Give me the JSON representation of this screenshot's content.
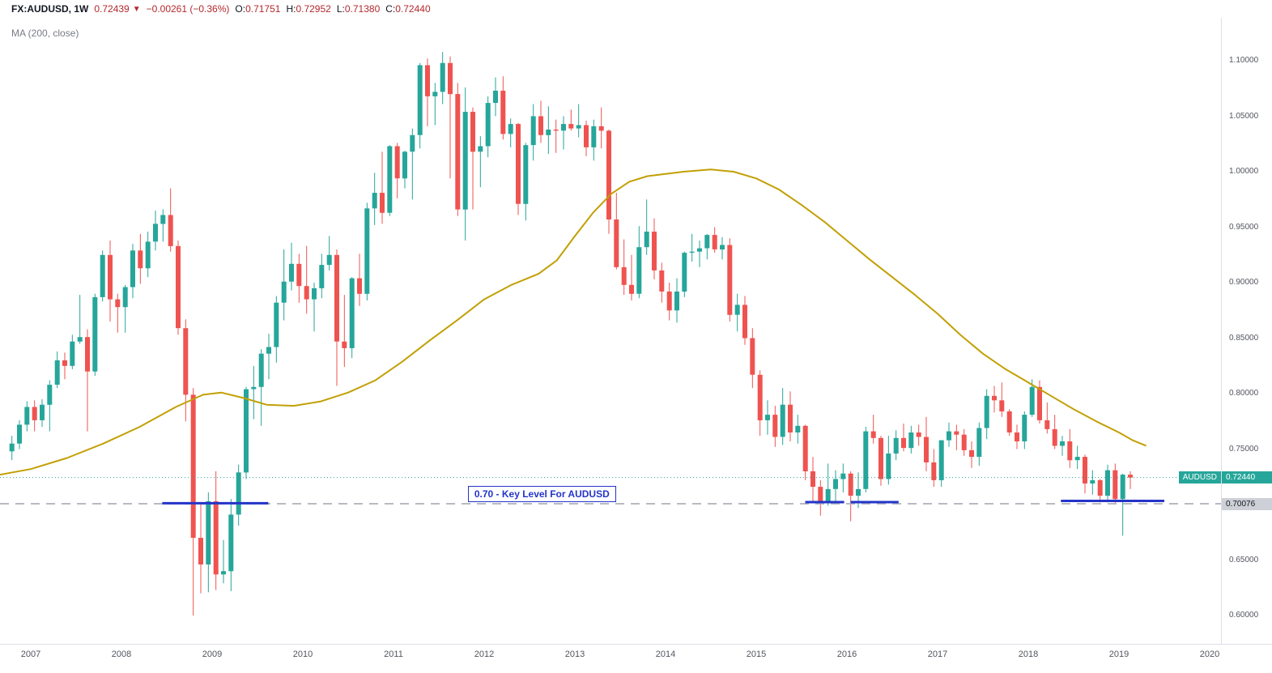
{
  "header": {
    "symbol": "FX:AUDUSD, 1W",
    "last": "0.72439",
    "direction": "▼",
    "change": "−0.00261 (−0.36%)",
    "ohlc": [
      {
        "label": "O:",
        "value": "0.71751"
      },
      {
        "label": "H:",
        "value": "0.72952"
      },
      {
        "label": "L:",
        "value": "0.71380"
      },
      {
        "label": "C:",
        "value": "0.72440"
      }
    ]
  },
  "indicator_label": "MA (200, close)",
  "price_axis": {
    "symbol_tag": {
      "label": "AUDUSD",
      "value": "0.72440"
    },
    "level_tag": {
      "value": "0.70076"
    }
  },
  "colors": {
    "up": "#26a69a",
    "down": "#ef5350",
    "ma": "#c2a004",
    "key_level": "#2434c8",
    "dashed_level": "#b7bac3",
    "current_price": "#26a69a",
    "tag_symbol_bg": "#26a69a",
    "tag_level_bg": "#cdd0d6",
    "header_down": "#b3282d"
  },
  "chart_data": {
    "type": "candlestick",
    "title": "FX:AUDUSD, 1W",
    "symbol": "AUDUSD",
    "timeframe": "1W",
    "x_axis": {
      "years": [
        2007,
        2008,
        2009,
        2010,
        2011,
        2012,
        2013,
        2014,
        2015,
        2016,
        2017,
        2018,
        2019,
        2020
      ],
      "range_visible": [
        2006.66,
        2020.13
      ]
    },
    "y_axis": {
      "tick_values": [
        0.6,
        0.65,
        0.7,
        0.75,
        0.8,
        0.85,
        0.9,
        0.95,
        1.0,
        1.05,
        1.1
      ],
      "format": "0.00000",
      "range_visible": [
        0.5745,
        1.1388
      ]
    },
    "grid": false,
    "legend_position": "top-left",
    "ohlc_fields": [
      "month",
      "open",
      "high",
      "low",
      "close"
    ],
    "candles": [
      [
        "2006-10",
        0.748,
        0.762,
        0.74,
        0.755
      ],
      [
        "2006-11",
        0.755,
        0.776,
        0.75,
        0.772
      ],
      [
        "2006-12",
        0.772,
        0.793,
        0.766,
        0.788
      ],
      [
        "2007-01",
        0.788,
        0.794,
        0.766,
        0.776
      ],
      [
        "2007-02",
        0.776,
        0.795,
        0.77,
        0.79
      ],
      [
        "2007-03",
        0.79,
        0.812,
        0.766,
        0.808
      ],
      [
        "2007-04",
        0.808,
        0.838,
        0.805,
        0.83
      ],
      [
        "2007-05",
        0.83,
        0.837,
        0.813,
        0.825
      ],
      [
        "2007-06",
        0.825,
        0.853,
        0.822,
        0.847
      ],
      [
        "2007-07",
        0.847,
        0.889,
        0.845,
        0.851
      ],
      [
        "2007-08",
        0.851,
        0.858,
        0.766,
        0.82
      ],
      [
        "2007-09",
        0.82,
        0.89,
        0.816,
        0.887
      ],
      [
        "2007-10",
        0.887,
        0.929,
        0.883,
        0.925
      ],
      [
        "2007-11",
        0.925,
        0.938,
        0.865,
        0.885
      ],
      [
        "2007-12",
        0.885,
        0.89,
        0.855,
        0.878
      ],
      [
        "2008-01",
        0.878,
        0.898,
        0.855,
        0.896
      ],
      [
        "2008-02",
        0.896,
        0.935,
        0.886,
        0.929
      ],
      [
        "2008-03",
        0.929,
        0.944,
        0.899,
        0.913
      ],
      [
        "2008-04",
        0.913,
        0.946,
        0.905,
        0.937
      ],
      [
        "2008-05",
        0.937,
        0.965,
        0.929,
        0.953
      ],
      [
        "2008-06",
        0.953,
        0.966,
        0.937,
        0.961
      ],
      [
        "2008-07",
        0.961,
        0.985,
        0.928,
        0.933
      ],
      [
        "2008-08",
        0.933,
        0.938,
        0.853,
        0.859
      ],
      [
        "2008-09",
        0.859,
        0.867,
        0.775,
        0.799
      ],
      [
        "2008-10",
        0.799,
        0.805,
        0.6,
        0.67
      ],
      [
        "2008-11",
        0.67,
        0.7,
        0.62,
        0.646
      ],
      [
        "2008-12",
        0.646,
        0.711,
        0.621,
        0.703
      ],
      [
        "2009-01",
        0.703,
        0.73,
        0.623,
        0.637
      ],
      [
        "2009-02",
        0.637,
        0.668,
        0.629,
        0.64
      ],
      [
        "2009-03",
        0.64,
        0.705,
        0.622,
        0.691
      ],
      [
        "2009-04",
        0.691,
        0.736,
        0.681,
        0.729
      ],
      [
        "2009-05",
        0.729,
        0.806,
        0.723,
        0.804
      ],
      [
        "2009-06",
        0.804,
        0.825,
        0.777,
        0.806
      ],
      [
        "2009-07",
        0.806,
        0.84,
        0.771,
        0.836
      ],
      [
        "2009-08",
        0.836,
        0.854,
        0.813,
        0.842
      ],
      [
        "2009-09",
        0.842,
        0.888,
        0.828,
        0.882
      ],
      [
        "2009-10",
        0.882,
        0.93,
        0.866,
        0.901
      ],
      [
        "2009-11",
        0.901,
        0.936,
        0.893,
        0.917
      ],
      [
        "2009-12",
        0.917,
        0.926,
        0.882,
        0.897
      ],
      [
        "2010-01",
        0.897,
        0.933,
        0.872,
        0.885
      ],
      [
        "2010-02",
        0.885,
        0.9,
        0.856,
        0.895
      ],
      [
        "2010-03",
        0.895,
        0.926,
        0.886,
        0.916
      ],
      [
        "2010-04",
        0.916,
        0.942,
        0.911,
        0.925
      ],
      [
        "2010-05",
        0.925,
        0.93,
        0.807,
        0.847
      ],
      [
        "2010-06",
        0.847,
        0.889,
        0.824,
        0.841
      ],
      [
        "2010-07",
        0.841,
        0.905,
        0.832,
        0.904
      ],
      [
        "2010-08",
        0.904,
        0.926,
        0.879,
        0.89
      ],
      [
        "2010-09",
        0.89,
        0.972,
        0.884,
        0.967
      ],
      [
        "2010-10",
        0.967,
        0.999,
        0.952,
        0.981
      ],
      [
        "2010-11",
        0.981,
        1.018,
        0.953,
        0.963
      ],
      [
        "2010-12",
        0.963,
        1.024,
        0.96,
        1.023
      ],
      [
        "2011-01",
        1.023,
        1.026,
        0.976,
        0.994
      ],
      [
        "2011-02",
        0.994,
        1.019,
        0.985,
        1.018
      ],
      [
        "2011-03",
        1.018,
        1.039,
        0.975,
        1.033
      ],
      [
        "2011-04",
        1.033,
        1.098,
        1.021,
        1.096
      ],
      [
        "2011-05",
        1.096,
        1.102,
        1.041,
        1.068
      ],
      [
        "2011-06",
        1.068,
        1.08,
        1.042,
        1.072
      ],
      [
        "2011-07",
        1.072,
        1.108,
        1.061,
        1.098
      ],
      [
        "2011-08",
        1.098,
        1.104,
        0.994,
        1.07
      ],
      [
        "2011-09",
        1.07,
        1.08,
        0.96,
        0.966
      ],
      [
        "2011-10",
        0.966,
        1.076,
        0.938,
        1.054
      ],
      [
        "2011-11",
        1.054,
        1.058,
        0.966,
        1.018
      ],
      [
        "2011-12",
        1.018,
        1.032,
        0.986,
        1.023
      ],
      [
        "2012-01",
        1.023,
        1.068,
        1.013,
        1.062
      ],
      [
        "2012-02",
        1.062,
        1.085,
        1.05,
        1.073
      ],
      [
        "2012-03",
        1.073,
        1.086,
        1.029,
        1.034
      ],
      [
        "2012-04",
        1.034,
        1.048,
        1.022,
        1.043
      ],
      [
        "2012-05",
        1.043,
        1.044,
        0.961,
        0.971
      ],
      [
        "2012-06",
        0.971,
        1.026,
        0.956,
        1.024
      ],
      [
        "2012-07",
        1.024,
        1.061,
        1.01,
        1.05
      ],
      [
        "2012-08",
        1.05,
        1.064,
        1.026,
        1.033
      ],
      [
        "2012-09",
        1.033,
        1.059,
        1.016,
        1.038
      ],
      [
        "2012-10",
        1.038,
        1.047,
        1.017,
        1.037
      ],
      [
        "2012-11",
        1.037,
        1.05,
        1.02,
        1.043
      ],
      [
        "2012-12",
        1.043,
        1.056,
        1.037,
        1.039
      ],
      [
        "2013-01",
        1.039,
        1.061,
        1.031,
        1.042
      ],
      [
        "2013-02",
        1.042,
        1.046,
        1.014,
        1.022
      ],
      [
        "2013-03",
        1.022,
        1.047,
        1.01,
        1.041
      ],
      [
        "2013-04",
        1.041,
        1.058,
        1.021,
        1.037
      ],
      [
        "2013-05",
        1.037,
        1.038,
        0.944,
        0.957
      ],
      [
        "2013-06",
        0.957,
        0.981,
        0.912,
        0.914
      ],
      [
        "2013-07",
        0.914,
        0.939,
        0.889,
        0.898
      ],
      [
        "2013-08",
        0.898,
        0.925,
        0.884,
        0.89
      ],
      [
        "2013-09",
        0.89,
        0.951,
        0.886,
        0.932
      ],
      [
        "2013-10",
        0.932,
        0.975,
        0.925,
        0.946
      ],
      [
        "2013-11",
        0.946,
        0.958,
        0.903,
        0.911
      ],
      [
        "2013-12",
        0.911,
        0.918,
        0.882,
        0.892
      ],
      [
        "2014-01",
        0.892,
        0.9,
        0.866,
        0.875
      ],
      [
        "2014-02",
        0.875,
        0.904,
        0.864,
        0.892
      ],
      [
        "2014-03",
        0.892,
        0.928,
        0.887,
        0.927
      ],
      [
        "2014-04",
        0.927,
        0.944,
        0.919,
        0.928
      ],
      [
        "2014-05",
        0.928,
        0.938,
        0.914,
        0.931
      ],
      [
        "2014-06",
        0.931,
        0.944,
        0.921,
        0.943
      ],
      [
        "2014-07",
        0.943,
        0.95,
        0.927,
        0.93
      ],
      [
        "2014-08",
        0.93,
        0.941,
        0.921,
        0.934
      ],
      [
        "2014-09",
        0.934,
        0.94,
        0.865,
        0.871
      ],
      [
        "2014-10",
        0.871,
        0.89,
        0.856,
        0.88
      ],
      [
        "2014-11",
        0.88,
        0.888,
        0.844,
        0.85
      ],
      [
        "2014-12",
        0.85,
        0.859,
        0.805,
        0.817
      ],
      [
        "2015-01",
        0.817,
        0.821,
        0.762,
        0.776
      ],
      [
        "2015-02",
        0.776,
        0.794,
        0.763,
        0.781
      ],
      [
        "2015-03",
        0.781,
        0.789,
        0.752,
        0.761
      ],
      [
        "2015-04",
        0.761,
        0.805,
        0.754,
        0.79
      ],
      [
        "2015-05",
        0.79,
        0.802,
        0.757,
        0.765
      ],
      [
        "2015-06",
        0.765,
        0.781,
        0.755,
        0.771
      ],
      [
        "2015-07",
        0.771,
        0.772,
        0.722,
        0.73
      ],
      [
        "2015-08",
        0.73,
        0.743,
        0.702,
        0.716
      ],
      [
        "2015-09",
        0.716,
        0.722,
        0.69,
        0.702
      ],
      [
        "2015-10",
        0.702,
        0.737,
        0.699,
        0.714
      ],
      [
        "2015-11",
        0.714,
        0.731,
        0.7,
        0.723
      ],
      [
        "2015-12",
        0.723,
        0.737,
        0.711,
        0.728
      ],
      [
        "2016-01",
        0.728,
        0.73,
        0.685,
        0.708
      ],
      [
        "2016-02",
        0.708,
        0.729,
        0.697,
        0.714
      ],
      [
        "2016-03",
        0.714,
        0.77,
        0.711,
        0.766
      ],
      [
        "2016-04",
        0.766,
        0.781,
        0.755,
        0.76
      ],
      [
        "2016-05",
        0.76,
        0.762,
        0.717,
        0.723
      ],
      [
        "2016-06",
        0.723,
        0.762,
        0.718,
        0.746
      ],
      [
        "2016-07",
        0.746,
        0.767,
        0.74,
        0.76
      ],
      [
        "2016-08",
        0.76,
        0.773,
        0.748,
        0.751
      ],
      [
        "2016-09",
        0.751,
        0.771,
        0.746,
        0.765
      ],
      [
        "2016-10",
        0.765,
        0.772,
        0.753,
        0.761
      ],
      [
        "2016-11",
        0.761,
        0.779,
        0.73,
        0.738
      ],
      [
        "2016-12",
        0.738,
        0.75,
        0.716,
        0.722
      ],
      [
        "2017-01",
        0.722,
        0.758,
        0.716,
        0.758
      ],
      [
        "2017-02",
        0.758,
        0.774,
        0.752,
        0.766
      ],
      [
        "2017-03",
        0.766,
        0.772,
        0.749,
        0.763
      ],
      [
        "2017-04",
        0.763,
        0.768,
        0.744,
        0.749
      ],
      [
        "2017-05",
        0.749,
        0.757,
        0.733,
        0.743
      ],
      [
        "2017-06",
        0.743,
        0.774,
        0.735,
        0.769
      ],
      [
        "2017-07",
        0.769,
        0.804,
        0.759,
        0.798
      ],
      [
        "2017-08",
        0.798,
        0.807,
        0.783,
        0.794
      ],
      [
        "2017-09",
        0.794,
        0.81,
        0.779,
        0.784
      ],
      [
        "2017-10",
        0.784,
        0.786,
        0.762,
        0.765
      ],
      [
        "2017-11",
        0.765,
        0.772,
        0.75,
        0.757
      ],
      [
        "2017-12",
        0.757,
        0.784,
        0.75,
        0.781
      ],
      [
        "2018-01",
        0.781,
        0.813,
        0.779,
        0.806
      ],
      [
        "2018-02",
        0.806,
        0.812,
        0.773,
        0.776
      ],
      [
        "2018-03",
        0.776,
        0.792,
        0.764,
        0.768
      ],
      [
        "2018-04",
        0.768,
        0.781,
        0.75,
        0.753
      ],
      [
        "2018-05",
        0.753,
        0.762,
        0.744,
        0.757
      ],
      [
        "2018-06",
        0.757,
        0.768,
        0.733,
        0.74
      ],
      [
        "2018-07",
        0.74,
        0.753,
        0.732,
        0.743
      ],
      [
        "2018-08",
        0.743,
        0.745,
        0.71,
        0.719
      ],
      [
        "2018-09",
        0.719,
        0.731,
        0.709,
        0.722
      ],
      [
        "2018-10",
        0.722,
        0.723,
        0.702,
        0.708
      ],
      [
        "2018-11",
        0.708,
        0.736,
        0.702,
        0.731
      ],
      [
        "2018-12",
        0.731,
        0.737,
        0.701,
        0.705
      ],
      [
        "2019-01",
        0.705,
        0.728,
        0.672,
        0.727
      ],
      [
        "2019-02",
        0.727,
        0.73,
        0.714,
        0.7244
      ]
    ],
    "overlays": [
      {
        "type": "line",
        "name": "MA (200, close)",
        "color": "#c2a004",
        "points": [
          [
            2006.66,
            0.727
          ],
          [
            2007.0,
            0.732
          ],
          [
            2007.4,
            0.742
          ],
          [
            2007.8,
            0.755
          ],
          [
            2008.2,
            0.77
          ],
          [
            2008.6,
            0.788
          ],
          [
            2008.9,
            0.799
          ],
          [
            2009.1,
            0.801
          ],
          [
            2009.35,
            0.796
          ],
          [
            2009.6,
            0.79
          ],
          [
            2009.9,
            0.789
          ],
          [
            2010.2,
            0.793
          ],
          [
            2010.5,
            0.801
          ],
          [
            2010.8,
            0.812
          ],
          [
            2011.1,
            0.829
          ],
          [
            2011.4,
            0.848
          ],
          [
            2011.7,
            0.866
          ],
          [
            2012.0,
            0.885
          ],
          [
            2012.3,
            0.898
          ],
          [
            2012.6,
            0.908
          ],
          [
            2012.8,
            0.92
          ],
          [
            2013.0,
            0.942
          ],
          [
            2013.2,
            0.963
          ],
          [
            2013.4,
            0.98
          ],
          [
            2013.6,
            0.991
          ],
          [
            2013.8,
            0.996
          ],
          [
            2014.0,
            0.998
          ],
          [
            2014.2,
            1.0
          ],
          [
            2014.5,
            1.002
          ],
          [
            2014.75,
            1.0
          ],
          [
            2015.0,
            0.994
          ],
          [
            2015.25,
            0.984
          ],
          [
            2015.5,
            0.97
          ],
          [
            2015.75,
            0.955
          ],
          [
            2016.0,
            0.938
          ],
          [
            2016.25,
            0.921
          ],
          [
            2016.5,
            0.905
          ],
          [
            2016.75,
            0.889
          ],
          [
            2017.0,
            0.872
          ],
          [
            2017.25,
            0.853
          ],
          [
            2017.5,
            0.836
          ],
          [
            2017.75,
            0.822
          ],
          [
            2018.0,
            0.81
          ],
          [
            2018.25,
            0.798
          ],
          [
            2018.5,
            0.786
          ],
          [
            2018.75,
            0.775
          ],
          [
            2019.0,
            0.765
          ],
          [
            2019.15,
            0.758
          ],
          [
            2019.3,
            0.753
          ]
        ]
      }
    ],
    "levels": {
      "current_price_line": {
        "price": 0.7244,
        "style": "dotted",
        "color": "#26a69a"
      },
      "dashed_line": {
        "price": 0.70076,
        "style": "dashed",
        "color": "#b7bac3"
      },
      "key_level_segments": [
        {
          "x1": 2008.45,
          "x2": 2009.62,
          "price": 0.7012
        },
        {
          "x1": 2015.54,
          "x2": 2015.97,
          "price": 0.7022
        },
        {
          "x1": 2016.04,
          "x2": 2016.57,
          "price": 0.7022
        },
        {
          "x1": 2018.36,
          "x2": 2019.5,
          "price": 0.7033
        }
      ]
    },
    "annotations": [
      {
        "text": "0.70 - Key Level For AUDUSD",
        "x_year": 2011.82,
        "price_top": 0.7165
      }
    ]
  }
}
